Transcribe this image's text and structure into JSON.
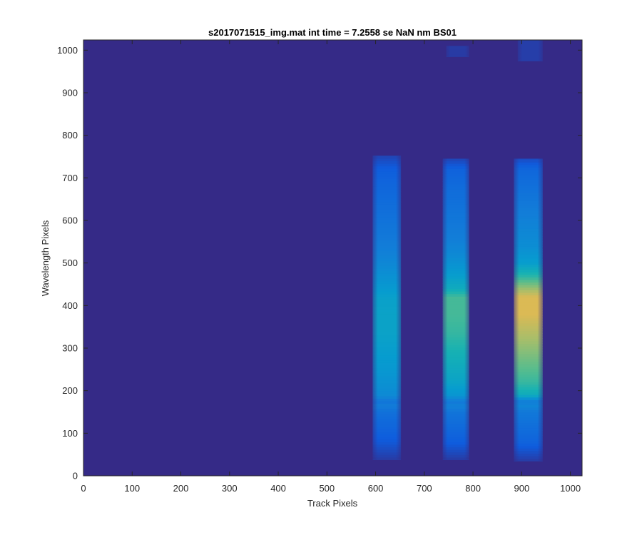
{
  "chart_data": {
    "type": "heatmap",
    "title": "s2017071515_img.mat int time = 7.2558 se  NaN nm BS01",
    "xlabel": "Track Pixels",
    "ylabel": "Wavelength Pixels",
    "xlim": [
      0,
      1024
    ],
    "ylim": [
      0,
      1024
    ],
    "x_ticks": [
      0,
      100,
      200,
      300,
      400,
      500,
      600,
      700,
      800,
      900,
      1000
    ],
    "y_ticks": [
      0,
      100,
      200,
      300,
      400,
      500,
      600,
      700,
      800,
      900,
      1000
    ],
    "colormap": "parula",
    "background_value": 0,
    "bands": [
      {
        "x_start": 594,
        "x_end": 652,
        "y_start": 38,
        "y_end": 752,
        "profile": [
          [
            38,
            0.05
          ],
          [
            80,
            0.14
          ],
          [
            120,
            0.2
          ],
          [
            150,
            0.24
          ],
          [
            165,
            0.3
          ],
          [
            175,
            0.26
          ],
          [
            190,
            0.36
          ],
          [
            220,
            0.4
          ],
          [
            260,
            0.44
          ],
          [
            300,
            0.46
          ],
          [
            340,
            0.48
          ],
          [
            380,
            0.48
          ],
          [
            420,
            0.47
          ],
          [
            440,
            0.44
          ],
          [
            480,
            0.38
          ],
          [
            520,
            0.32
          ],
          [
            560,
            0.28
          ],
          [
            620,
            0.24
          ],
          [
            680,
            0.2
          ],
          [
            720,
            0.16
          ],
          [
            752,
            0.08
          ]
        ]
      },
      {
        "x_start": 738,
        "x_end": 792,
        "y_start": 38,
        "y_end": 745,
        "profile": [
          [
            38,
            0.05
          ],
          [
            80,
            0.16
          ],
          [
            120,
            0.22
          ],
          [
            150,
            0.26
          ],
          [
            165,
            0.32
          ],
          [
            175,
            0.28
          ],
          [
            190,
            0.42
          ],
          [
            220,
            0.48
          ],
          [
            260,
            0.52
          ],
          [
            300,
            0.56
          ],
          [
            340,
            0.6
          ],
          [
            380,
            0.62
          ],
          [
            420,
            0.62
          ],
          [
            440,
            0.52
          ],
          [
            480,
            0.44
          ],
          [
            520,
            0.36
          ],
          [
            560,
            0.3
          ],
          [
            620,
            0.26
          ],
          [
            680,
            0.22
          ],
          [
            720,
            0.18
          ],
          [
            745,
            0.08
          ]
        ]
      },
      {
        "x_start": 884,
        "x_end": 943,
        "y_start": 35,
        "y_end": 745,
        "profile": [
          [
            35,
            0.05
          ],
          [
            80,
            0.18
          ],
          [
            120,
            0.24
          ],
          [
            150,
            0.28
          ],
          [
            165,
            0.34
          ],
          [
            175,
            0.3
          ],
          [
            190,
            0.52
          ],
          [
            220,
            0.6
          ],
          [
            260,
            0.66
          ],
          [
            300,
            0.72
          ],
          [
            340,
            0.78
          ],
          [
            380,
            0.84
          ],
          [
            420,
            0.84
          ],
          [
            440,
            0.74
          ],
          [
            470,
            0.58
          ],
          [
            500,
            0.46
          ],
          [
            540,
            0.38
          ],
          [
            600,
            0.32
          ],
          [
            660,
            0.26
          ],
          [
            720,
            0.2
          ],
          [
            745,
            0.1
          ]
        ]
      },
      {
        "x_start": 745,
        "x_end": 792,
        "y_start": 985,
        "y_end": 1010,
        "profile": [
          [
            985,
            0.05
          ],
          [
            1010,
            0.05
          ]
        ]
      },
      {
        "x_start": 892,
        "x_end": 943,
        "y_start": 975,
        "y_end": 1024,
        "profile": [
          [
            975,
            0.06
          ],
          [
            1024,
            0.06
          ]
        ]
      }
    ]
  }
}
